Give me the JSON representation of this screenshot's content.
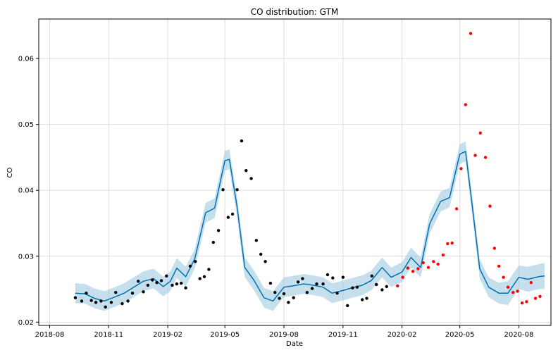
{
  "chart_data": {
    "type": "line",
    "title": "CO distribution: GTM",
    "xlabel": "Date",
    "ylabel": "CO",
    "x_tick_labels": [
      "2018-08",
      "2018-11",
      "2019-02",
      "2019-05",
      "2019-08",
      "2019-11",
      "2020-02",
      "2020-05",
      "2020-08"
    ],
    "y_tick_labels": [
      "0.02",
      "0.03",
      "0.04",
      "0.05",
      "0.06"
    ],
    "xlim": [
      "2018-07-15",
      "2020-09-20"
    ],
    "ylim": [
      0.0195,
      0.066
    ],
    "grid": true,
    "colors": {
      "forecast_line": "#0072B2",
      "uncertainty_band": "#9ecae1",
      "observed_points": "#000000",
      "test_points": "#ff0000"
    },
    "series": [
      {
        "kind": "forecast",
        "x": [
          "2018-09-10",
          "2018-09-25",
          "2018-10-10",
          "2018-10-25",
          "2018-11-10",
          "2018-11-25",
          "2018-12-10",
          "2018-12-25",
          "2019-01-10",
          "2019-01-25",
          "2019-02-05",
          "2019-02-15",
          "2019-03-01",
          "2019-03-15",
          "2019-04-01",
          "2019-04-15",
          "2019-05-01",
          "2019-05-08",
          "2019-05-20",
          "2019-06-01",
          "2019-06-15",
          "2019-07-01",
          "2019-07-15",
          "2019-08-01",
          "2019-08-15",
          "2019-09-01",
          "2019-09-15",
          "2019-10-01",
          "2019-10-15",
          "2019-11-01",
          "2019-11-15",
          "2019-12-01",
          "2019-12-15",
          "2020-01-01",
          "2020-01-15",
          "2020-02-01",
          "2020-02-15",
          "2020-03-01",
          "2020-03-15",
          "2020-04-01",
          "2020-04-15",
          "2020-05-01",
          "2020-05-10",
          "2020-05-20",
          "2020-06-01",
          "2020-06-15",
          "2020-07-01",
          "2020-07-15",
          "2020-08-01",
          "2020-08-15",
          "2020-09-01",
          "2020-09-10"
        ],
        "values": [
          0.0244,
          0.0243,
          0.0236,
          0.0232,
          0.0238,
          0.0244,
          0.0253,
          0.0262,
          0.0266,
          0.0254,
          0.0262,
          0.0282,
          0.0269,
          0.0296,
          0.0366,
          0.0373,
          0.0445,
          0.0447,
          0.0375,
          0.0283,
          0.0264,
          0.0237,
          0.0232,
          0.0253,
          0.0255,
          0.0258,
          0.0256,
          0.0253,
          0.0244,
          0.0248,
          0.0252,
          0.0256,
          0.0263,
          0.0283,
          0.0268,
          0.0276,
          0.0298,
          0.0283,
          0.0349,
          0.0383,
          0.0389,
          0.0455,
          0.0459,
          0.038,
          0.0281,
          0.0253,
          0.0244,
          0.0244,
          0.0268,
          0.0265,
          0.0269,
          0.027
        ],
        "lower": [
          0.0229,
          0.0228,
          0.0221,
          0.0217,
          0.0223,
          0.0229,
          0.0238,
          0.0247,
          0.0251,
          0.0239,
          0.0247,
          0.0267,
          0.0254,
          0.0281,
          0.0351,
          0.0358,
          0.043,
          0.0432,
          0.036,
          0.0268,
          0.0249,
          0.0222,
          0.0217,
          0.0238,
          0.024,
          0.0243,
          0.0241,
          0.0238,
          0.0229,
          0.0233,
          0.0237,
          0.0241,
          0.0248,
          0.0268,
          0.0253,
          0.0261,
          0.0283,
          0.0268,
          0.0334,
          0.0368,
          0.0374,
          0.044,
          0.0444,
          0.0365,
          0.0266,
          0.0238,
          0.0228,
          0.0226,
          0.025,
          0.0246,
          0.025,
          0.025
        ],
        "upper": [
          0.0259,
          0.0258,
          0.0251,
          0.0247,
          0.0253,
          0.0259,
          0.0268,
          0.0277,
          0.0281,
          0.0269,
          0.0277,
          0.0297,
          0.0284,
          0.0311,
          0.0381,
          0.0388,
          0.046,
          0.0462,
          0.039,
          0.0298,
          0.0279,
          0.0252,
          0.0247,
          0.0268,
          0.027,
          0.0273,
          0.0271,
          0.0268,
          0.0259,
          0.0263,
          0.0267,
          0.0271,
          0.0278,
          0.0298,
          0.0283,
          0.0291,
          0.0313,
          0.0298,
          0.0364,
          0.0398,
          0.0404,
          0.047,
          0.0474,
          0.0395,
          0.0296,
          0.0268,
          0.026,
          0.0262,
          0.0286,
          0.0284,
          0.0288,
          0.029
        ]
      },
      {
        "kind": "observed",
        "x": [
          "2018-09-10",
          "2018-09-20",
          "2018-09-27",
          "2018-10-05",
          "2018-10-12",
          "2018-10-20",
          "2018-10-27",
          "2018-11-05",
          "2018-11-12",
          "2018-11-22",
          "2018-12-01",
          "2018-12-08",
          "2018-12-17",
          "2018-12-25",
          "2019-01-01",
          "2019-01-08",
          "2019-01-15",
          "2019-01-22",
          "2019-01-30",
          "2019-02-08",
          "2019-02-15",
          "2019-02-22",
          "2019-03-01",
          "2019-03-08",
          "2019-03-16",
          "2019-03-23",
          "2019-03-30",
          "2019-04-06",
          "2019-04-13",
          "2019-04-21",
          "2019-04-28",
          "2019-05-06",
          "2019-05-13",
          "2019-05-20",
          "2019-05-27",
          "2019-06-03",
          "2019-06-11",
          "2019-06-19",
          "2019-06-26",
          "2019-07-03",
          "2019-07-11",
          "2019-07-18",
          "2019-07-25",
          "2019-08-01",
          "2019-08-08",
          "2019-08-16",
          "2019-08-23",
          "2019-08-30",
          "2019-09-06",
          "2019-09-14",
          "2019-09-21",
          "2019-10-01",
          "2019-10-08",
          "2019-10-16",
          "2019-10-23",
          "2019-11-01",
          "2019-11-08",
          "2019-11-16",
          "2019-11-23",
          "2019-12-01",
          "2019-12-08",
          "2019-12-16",
          "2019-12-23",
          "2020-01-01",
          "2020-01-08"
        ],
        "values": [
          0.0237,
          0.0232,
          0.0244,
          0.0233,
          0.023,
          0.0232,
          0.0223,
          0.023,
          0.0245,
          0.0228,
          0.0232,
          0.0244,
          0.0262,
          0.0246,
          0.0256,
          0.0264,
          0.026,
          0.0263,
          0.027,
          0.0256,
          0.0258,
          0.0259,
          0.0252,
          0.0285,
          0.0292,
          0.0266,
          0.0269,
          0.028,
          0.0321,
          0.0339,
          0.0401,
          0.0359,
          0.0364,
          0.0401,
          0.0475,
          0.043,
          0.0418,
          0.0324,
          0.0303,
          0.0292,
          0.0259,
          0.0245,
          0.0236,
          0.0243,
          0.023,
          0.0237,
          0.0261,
          0.0266,
          0.0245,
          0.0251,
          0.0258,
          0.0258,
          0.0272,
          0.0267,
          0.0244,
          0.0268,
          0.0225,
          0.0252,
          0.0253,
          0.0234,
          0.0236,
          0.027,
          0.0257,
          0.0249,
          0.0254
        ]
      },
      {
        "kind": "test",
        "x": [
          "2020-01-25",
          "2020-02-02",
          "2020-02-10",
          "2020-02-18",
          "2020-02-26",
          "2020-03-05",
          "2020-03-13",
          "2020-03-21",
          "2020-03-28",
          "2020-04-05",
          "2020-04-12",
          "2020-04-19",
          "2020-04-26",
          "2020-05-03",
          "2020-05-10",
          "2020-05-18",
          "2020-05-25",
          "2020-06-02",
          "2020-06-10",
          "2020-06-17",
          "2020-06-24",
          "2020-07-01",
          "2020-07-08",
          "2020-07-15",
          "2020-07-23",
          "2020-07-30",
          "2020-08-06",
          "2020-08-13",
          "2020-08-20",
          "2020-08-27",
          "2020-09-03"
        ],
        "values": [
          0.0255,
          0.0268,
          0.0282,
          0.0277,
          0.0281,
          0.029,
          0.0283,
          0.0292,
          0.0288,
          0.0302,
          0.0319,
          0.032,
          0.0372,
          0.0433,
          0.053,
          0.0638,
          0.0453,
          0.0487,
          0.045,
          0.0376,
          0.0312,
          0.0285,
          0.0268,
          0.0253,
          0.0245,
          0.0247,
          0.0229,
          0.0231,
          0.026,
          0.0236,
          0.0239
        ]
      }
    ]
  }
}
